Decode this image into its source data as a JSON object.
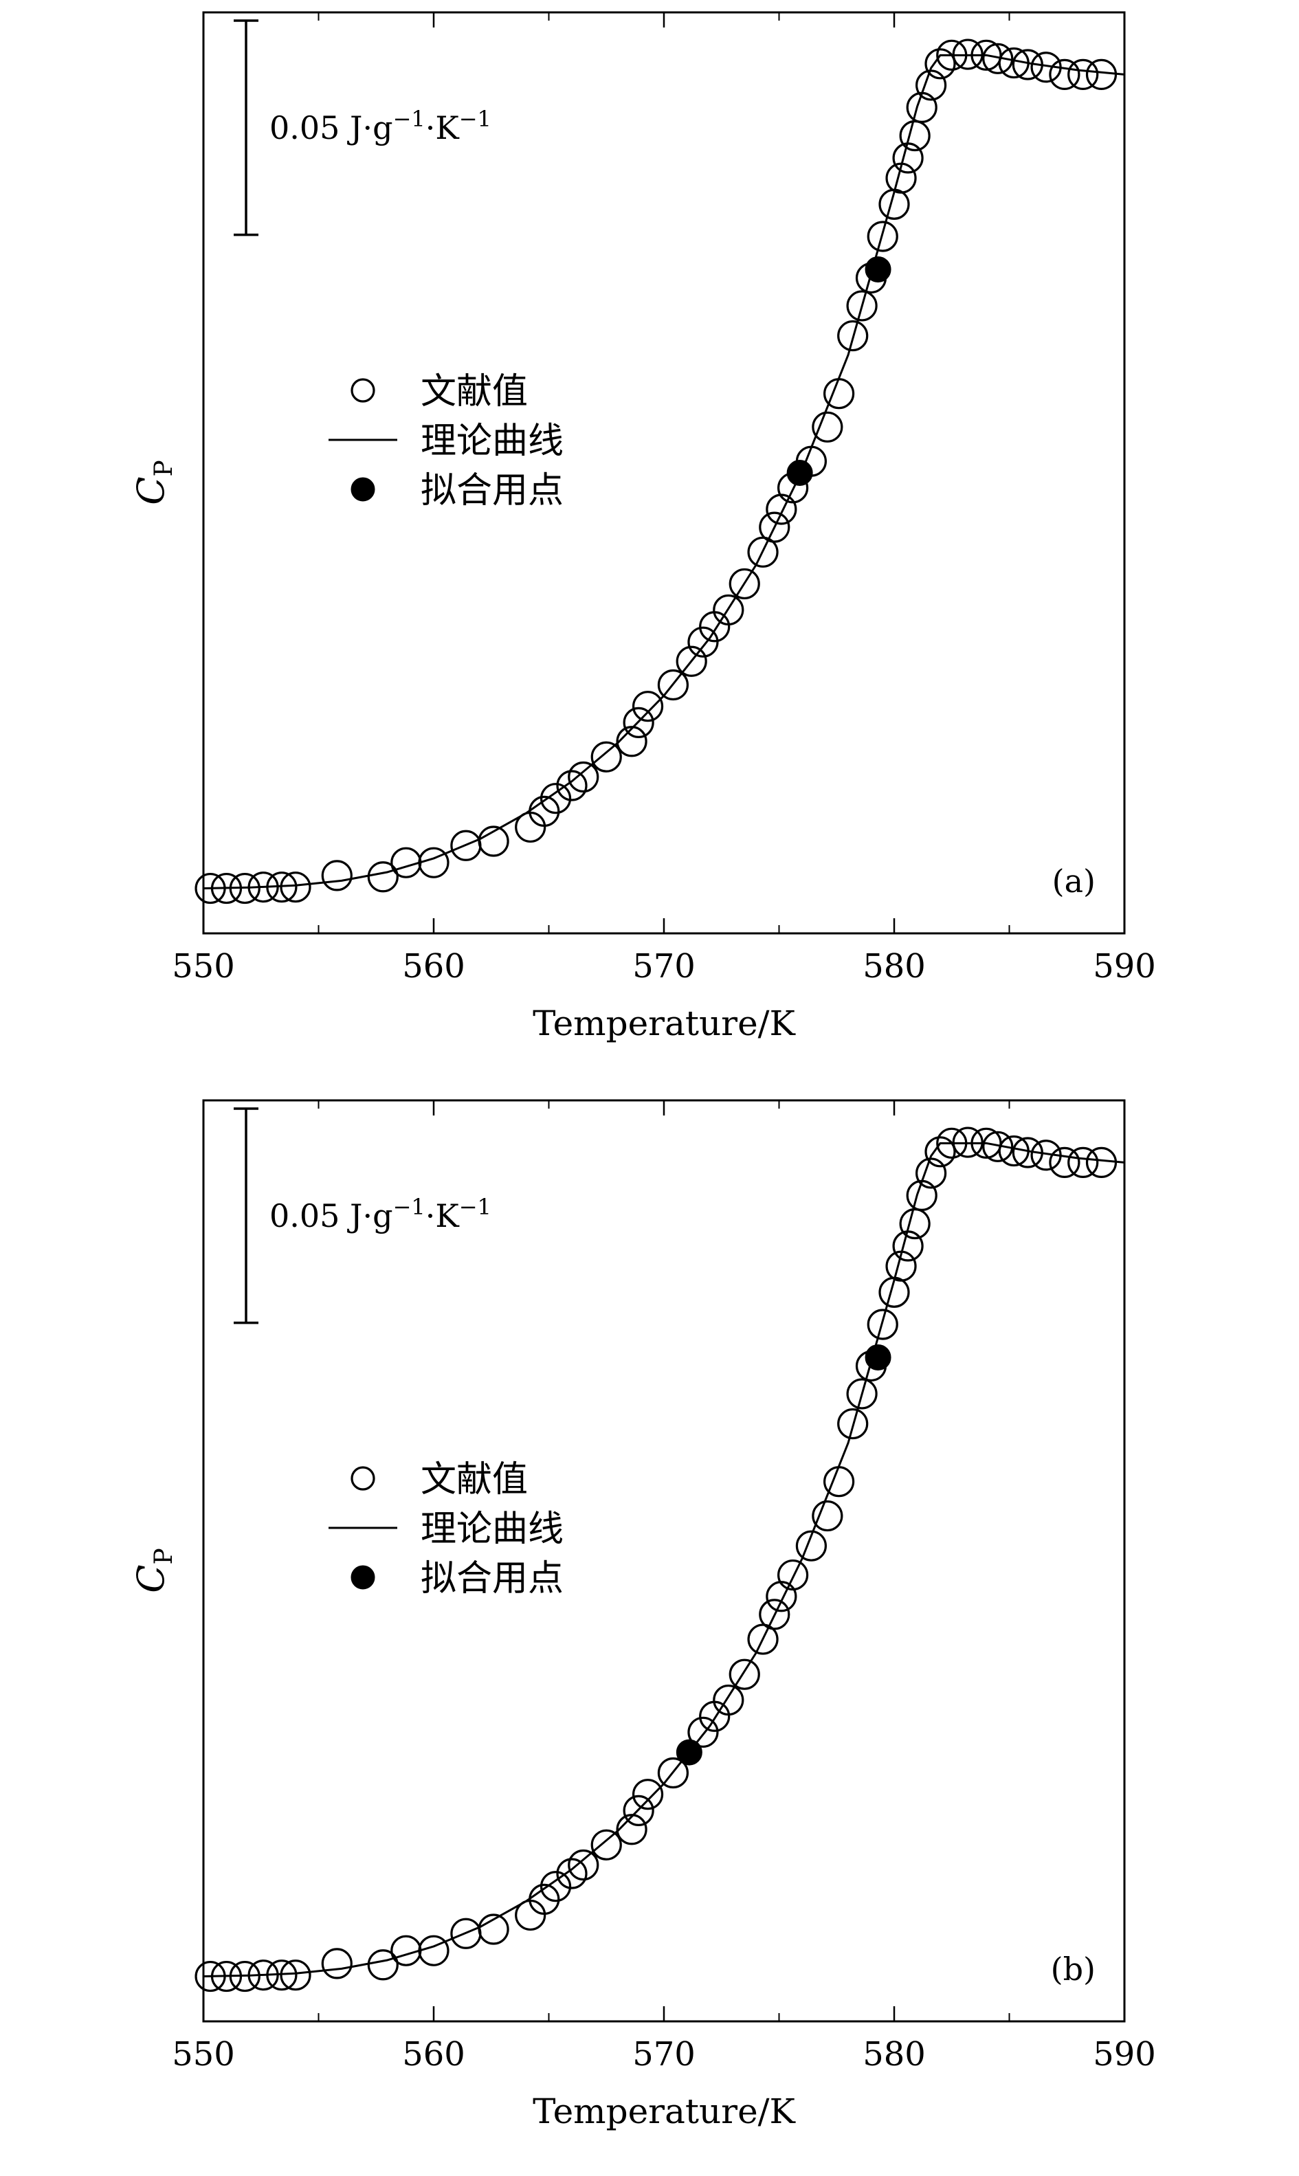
{
  "chart_data": [
    {
      "type": "scatter",
      "panel_label": "(a)",
      "xlabel": "Temperature/K",
      "ylabel_main": "C",
      "ylabel_sub": "P",
      "xlim": [
        550,
        590
      ],
      "ylim": [
        -0.003,
        0.212
      ],
      "y_ticks_visible": false,
      "x_ticks": [
        550,
        560,
        570,
        580,
        590
      ],
      "x_tick_labels": [
        "550",
        "560",
        "570",
        "580",
        "590"
      ],
      "grid": false,
      "legend_position": "center-left",
      "legend": [
        {
          "marker": "open-circle",
          "label": "文献值"
        },
        {
          "marker": "line",
          "label": "理论曲线"
        },
        {
          "marker": "filled-circle",
          "label": "拟合用点"
        }
      ],
      "scale_bar": {
        "value": 0.05,
        "text_main": "0.05 J·g",
        "text_exp1": "−1",
        "text_mid": "·K",
        "text_exp2": "−1"
      },
      "series": [
        {
          "marker": "open-circle",
          "x": [
            550.3,
            551.0,
            551.8,
            552.6,
            553.4,
            554.0,
            555.8,
            557.8,
            558.8,
            560.0,
            561.4,
            562.6,
            564.2,
            564.8,
            565.3,
            566.0,
            566.5,
            567.5,
            568.6,
            568.9,
            569.3,
            570.4,
            571.2,
            571.7,
            572.2,
            572.8,
            573.5,
            574.3,
            574.8,
            575.1,
            575.6,
            576.4,
            577.1,
            577.6,
            578.2,
            578.6,
            579.0,
            579.5,
            580.0,
            580.3,
            580.6,
            580.9,
            581.2,
            581.6,
            582.0,
            582.5,
            583.2,
            584.0,
            584.5,
            585.2,
            585.8,
            586.6,
            587.4,
            588.2,
            589.0
          ],
          "y": [
            0.0075,
            0.0075,
            0.0075,
            0.0078,
            0.0078,
            0.0078,
            0.0105,
            0.0102,
            0.0135,
            0.0135,
            0.0175,
            0.0185,
            0.0218,
            0.0255,
            0.0285,
            0.0315,
            0.0335,
            0.0382,
            0.0418,
            0.0462,
            0.05,
            0.055,
            0.0605,
            0.065,
            0.0686,
            0.0725,
            0.0786,
            0.086,
            0.0918,
            0.096,
            0.101,
            0.1072,
            0.1152,
            0.123,
            0.1365,
            0.1435,
            0.15,
            0.1597,
            0.1672,
            0.1733,
            0.178,
            0.1832,
            0.1898,
            0.195,
            0.2,
            0.202,
            0.2022,
            0.202,
            0.2012,
            0.2002,
            0.1998,
            0.1992,
            0.1975,
            0.1975,
            0.1975
          ]
        },
        {
          "marker": "filled-circle",
          "x": [
            575.9,
            579.3
          ],
          "y": [
            0.1045,
            0.152
          ]
        },
        {
          "marker": "line",
          "x": [
            550,
            552,
            554,
            556,
            558,
            560,
            562,
            564,
            566,
            568,
            570,
            572,
            574,
            576,
            578,
            580,
            581,
            581.6,
            582,
            584,
            586,
            588,
            590
          ],
          "y": [
            0.0075,
            0.0077,
            0.0082,
            0.0093,
            0.0113,
            0.0145,
            0.019,
            0.025,
            0.0325,
            0.0415,
            0.0525,
            0.066,
            0.083,
            0.105,
            0.132,
            0.17,
            0.19,
            0.199,
            0.202,
            0.202,
            0.2,
            0.1985,
            0.1975
          ]
        }
      ]
    },
    {
      "type": "scatter",
      "panel_label": "(b)",
      "xlabel": "Temperature/K",
      "ylabel_main": "C",
      "ylabel_sub": "P",
      "xlim": [
        550,
        590
      ],
      "ylim": [
        -0.003,
        0.212
      ],
      "y_ticks_visible": false,
      "x_ticks": [
        550,
        560,
        570,
        580,
        590
      ],
      "x_tick_labels": [
        "550",
        "560",
        "570",
        "580",
        "590"
      ],
      "grid": false,
      "legend_position": "center-left",
      "legend": [
        {
          "marker": "open-circle",
          "label": "文献值"
        },
        {
          "marker": "line",
          "label": "理论曲线"
        },
        {
          "marker": "filled-circle",
          "label": "拟合用点"
        }
      ],
      "scale_bar": {
        "value": 0.05,
        "text_main": "0.05 J·g",
        "text_exp1": "−1",
        "text_mid": "·K",
        "text_exp2": "−1"
      },
      "series": [
        {
          "marker": "open-circle",
          "x": [
            550.3,
            551.0,
            551.8,
            552.6,
            553.4,
            554.0,
            555.8,
            557.8,
            558.8,
            560.0,
            561.4,
            562.6,
            564.2,
            564.8,
            565.3,
            566.0,
            566.5,
            567.5,
            568.6,
            568.9,
            569.3,
            570.4,
            571.7,
            572.2,
            572.8,
            573.5,
            574.3,
            574.8,
            575.1,
            575.6,
            576.4,
            577.1,
            577.6,
            578.2,
            578.6,
            579.0,
            579.5,
            580.0,
            580.3,
            580.6,
            580.9,
            581.2,
            581.6,
            582.0,
            582.5,
            583.2,
            584.0,
            584.5,
            585.2,
            585.8,
            586.6,
            587.4,
            588.2,
            589.0
          ],
          "y": [
            0.0075,
            0.0075,
            0.0075,
            0.0078,
            0.0078,
            0.0078,
            0.0105,
            0.0102,
            0.0135,
            0.0135,
            0.0175,
            0.0185,
            0.0218,
            0.0255,
            0.0285,
            0.0315,
            0.0335,
            0.0382,
            0.0418,
            0.0462,
            0.05,
            0.055,
            0.0645,
            0.0682,
            0.072,
            0.078,
            0.0862,
            0.092,
            0.0962,
            0.1012,
            0.108,
            0.115,
            0.123,
            0.1365,
            0.1435,
            0.15,
            0.1597,
            0.1672,
            0.1733,
            0.178,
            0.1832,
            0.1898,
            0.195,
            0.2,
            0.202,
            0.2022,
            0.202,
            0.2012,
            0.2002,
            0.1998,
            0.1992,
            0.1975,
            0.1975,
            0.1975
          ]
        },
        {
          "marker": "filled-circle",
          "x": [
            571.1,
            579.3
          ],
          "y": [
            0.0598,
            0.152
          ]
        },
        {
          "marker": "line",
          "x": [
            550,
            552,
            554,
            556,
            558,
            560,
            562,
            564,
            566,
            568,
            570,
            572,
            574,
            576,
            578,
            580,
            581,
            581.6,
            582,
            584,
            586,
            588,
            590
          ],
          "y": [
            0.0075,
            0.0077,
            0.0082,
            0.0093,
            0.0113,
            0.0145,
            0.019,
            0.025,
            0.0325,
            0.0415,
            0.0525,
            0.066,
            0.083,
            0.105,
            0.132,
            0.17,
            0.19,
            0.199,
            0.202,
            0.202,
            0.2,
            0.1985,
            0.1975
          ]
        }
      ]
    }
  ]
}
